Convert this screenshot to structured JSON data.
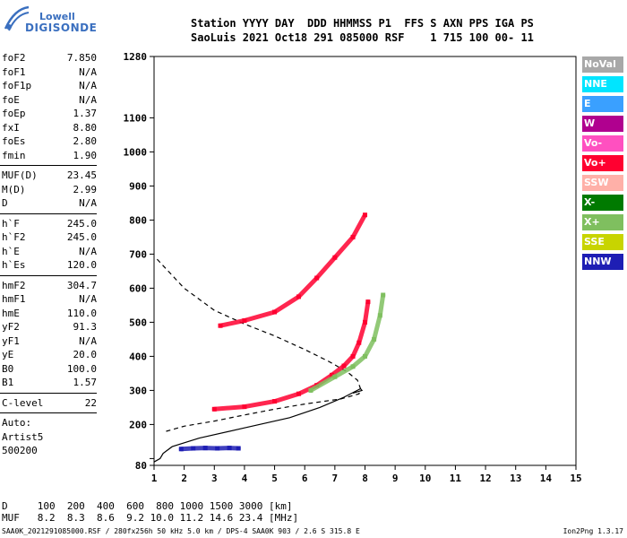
{
  "logo": {
    "line1": "Lowell",
    "line2": "DIGISONDE"
  },
  "header": {
    "line1": "Station YYYY DAY  DDD HHMMSS P1  FFS S AXN PPS IGA PS",
    "line2": "SaoLuis 2021 Oct18 291 085000 RSF    1 715 100 00- 11"
  },
  "params": {
    "group1": [
      {
        "key": "foF2",
        "value": "7.850"
      },
      {
        "key": "foF1",
        "value": "N/A"
      },
      {
        "key": "foF1p",
        "value": "N/A"
      },
      {
        "key": "foE",
        "value": "N/A"
      },
      {
        "key": "foEp",
        "value": "1.37"
      },
      {
        "key": "fxI",
        "value": "8.80"
      },
      {
        "key": "foEs",
        "value": "2.80"
      },
      {
        "key": "fmin",
        "value": "1.90"
      }
    ],
    "group2": [
      {
        "key": "MUF(D)",
        "value": "23.45"
      },
      {
        "key": "M(D)",
        "value": "2.99"
      },
      {
        "key": "D",
        "value": "N/A"
      }
    ],
    "group3": [
      {
        "key": "h`F",
        "value": "245.0"
      },
      {
        "key": "h`F2",
        "value": "245.0"
      },
      {
        "key": "h`E",
        "value": "N/A"
      },
      {
        "key": "h`Es",
        "value": "120.0"
      }
    ],
    "group4": [
      {
        "key": "hmF2",
        "value": "304.7"
      },
      {
        "key": "hmF1",
        "value": "N/A"
      },
      {
        "key": "hmE",
        "value": "110.0"
      },
      {
        "key": "yF2",
        "value": "91.3"
      },
      {
        "key": "yF1",
        "value": "N/A"
      },
      {
        "key": "yE",
        "value": "20.0"
      },
      {
        "key": "B0",
        "value": "100.0"
      },
      {
        "key": "B1",
        "value": "1.57"
      }
    ],
    "group5": [
      {
        "key": "C-level",
        "value": "22"
      }
    ],
    "auto": [
      "Auto:",
      "Artist5",
      "500200"
    ]
  },
  "legend": [
    {
      "label": "NoVal",
      "color": "#a8a8a8"
    },
    {
      "label": "NNE",
      "color": "#00e5ff"
    },
    {
      "label": "E",
      "color": "#3aa0ff"
    },
    {
      "label": "W",
      "color": "#b0008f"
    },
    {
      "label": "Vo-",
      "color": "#ff50c0"
    },
    {
      "label": "Vo+",
      "color": "#ff0030"
    },
    {
      "label": "SSW",
      "color": "#ffb0a8"
    },
    {
      "label": "X-",
      "color": "#007a00"
    },
    {
      "label": "X+",
      "color": "#7fbf5f"
    },
    {
      "label": "SSE",
      "color": "#c8d400"
    },
    {
      "label": "NNW",
      "color": "#1e1eb4"
    }
  ],
  "bottom": {
    "line1": "D     100  200  400  600  800 1000 1500 3000 [km]",
    "line2": "MUF   8.2  8.3  8.6  9.2 10.0 11.2 14.6 23.4 [MHz]"
  },
  "footer": "SAA0K_2021291085000.RSF / 280fx256h 50 kHz 5.0 km / DPS-4 SAA0K 903 / 2.6 S 315.8 E",
  "version": "Ion2Png 1.3.17",
  "chart_data": {
    "type": "scatter",
    "xlim": [
      1,
      15
    ],
    "ylim": [
      80,
      1280
    ],
    "x_ticks": [
      1,
      2,
      3,
      4,
      5,
      6,
      7,
      8,
      9,
      10,
      11,
      12,
      13,
      14,
      15
    ],
    "y_ticks": [
      80,
      100,
      200,
      300,
      400,
      500,
      600,
      700,
      800,
      900,
      1000,
      1100,
      1280
    ],
    "y_tick_labels": [
      "80",
      "",
      "200",
      "300",
      "400",
      "500",
      "600",
      "700",
      "800",
      "900",
      "1000",
      "1100",
      "1280"
    ],
    "grid": false,
    "traces": [
      {
        "name": "F2 ordinary trace",
        "color": "#ff0030",
        "points": [
          [
            3.0,
            245
          ],
          [
            4.0,
            252
          ],
          [
            5.0,
            268
          ],
          [
            5.8,
            290
          ],
          [
            6.4,
            315
          ],
          [
            6.9,
            345
          ],
          [
            7.3,
            372
          ],
          [
            7.6,
            400
          ],
          [
            7.8,
            440
          ],
          [
            8.0,
            500
          ],
          [
            8.1,
            560
          ]
        ]
      },
      {
        "name": "F2 extraordinary trace",
        "color": "#7fbf5f",
        "points": [
          [
            6.2,
            300
          ],
          [
            7.0,
            340
          ],
          [
            7.6,
            370
          ],
          [
            8.0,
            400
          ],
          [
            8.3,
            450
          ],
          [
            8.5,
            520
          ],
          [
            8.6,
            580
          ]
        ]
      },
      {
        "name": "second hop trace",
        "color": "#ff0030",
        "points": [
          [
            3.2,
            490
          ],
          [
            4.0,
            505
          ],
          [
            5.0,
            530
          ],
          [
            5.8,
            575
          ],
          [
            6.4,
            630
          ],
          [
            7.0,
            690
          ],
          [
            7.6,
            750
          ],
          [
            8.0,
            815
          ]
        ]
      },
      {
        "name": "Es trace",
        "color": "#1e1eb4",
        "points": [
          [
            1.9,
            128
          ],
          [
            2.3,
            130
          ],
          [
            2.7,
            131
          ],
          [
            3.1,
            130
          ],
          [
            3.5,
            131
          ],
          [
            3.8,
            130
          ]
        ]
      }
    ],
    "profile_dashed": [
      [
        1.1,
        685
      ],
      [
        2.0,
        600
      ],
      [
        3.0,
        535
      ],
      [
        4.0,
        495
      ],
      [
        5.0,
        460
      ],
      [
        6.0,
        420
      ],
      [
        6.8,
        385
      ],
      [
        7.4,
        355
      ],
      [
        7.75,
        330
      ],
      [
        7.85,
        305
      ],
      [
        7.8,
        290
      ],
      [
        7.2,
        275
      ],
      [
        6.0,
        260
      ],
      [
        5.0,
        245
      ],
      [
        4.0,
        228
      ],
      [
        3.0,
        210
      ],
      [
        2.0,
        195
      ],
      [
        1.4,
        180
      ]
    ],
    "profile_solid": [
      [
        1.0,
        90
      ],
      [
        1.2,
        100
      ],
      [
        1.3,
        115
      ],
      [
        1.6,
        135
      ],
      [
        2.5,
        160
      ],
      [
        4.0,
        190
      ],
      [
        5.5,
        220
      ],
      [
        6.5,
        250
      ],
      [
        7.3,
        280
      ],
      [
        7.85,
        305
      ],
      [
        7.9,
        300
      ],
      [
        7.6,
        292
      ]
    ]
  }
}
